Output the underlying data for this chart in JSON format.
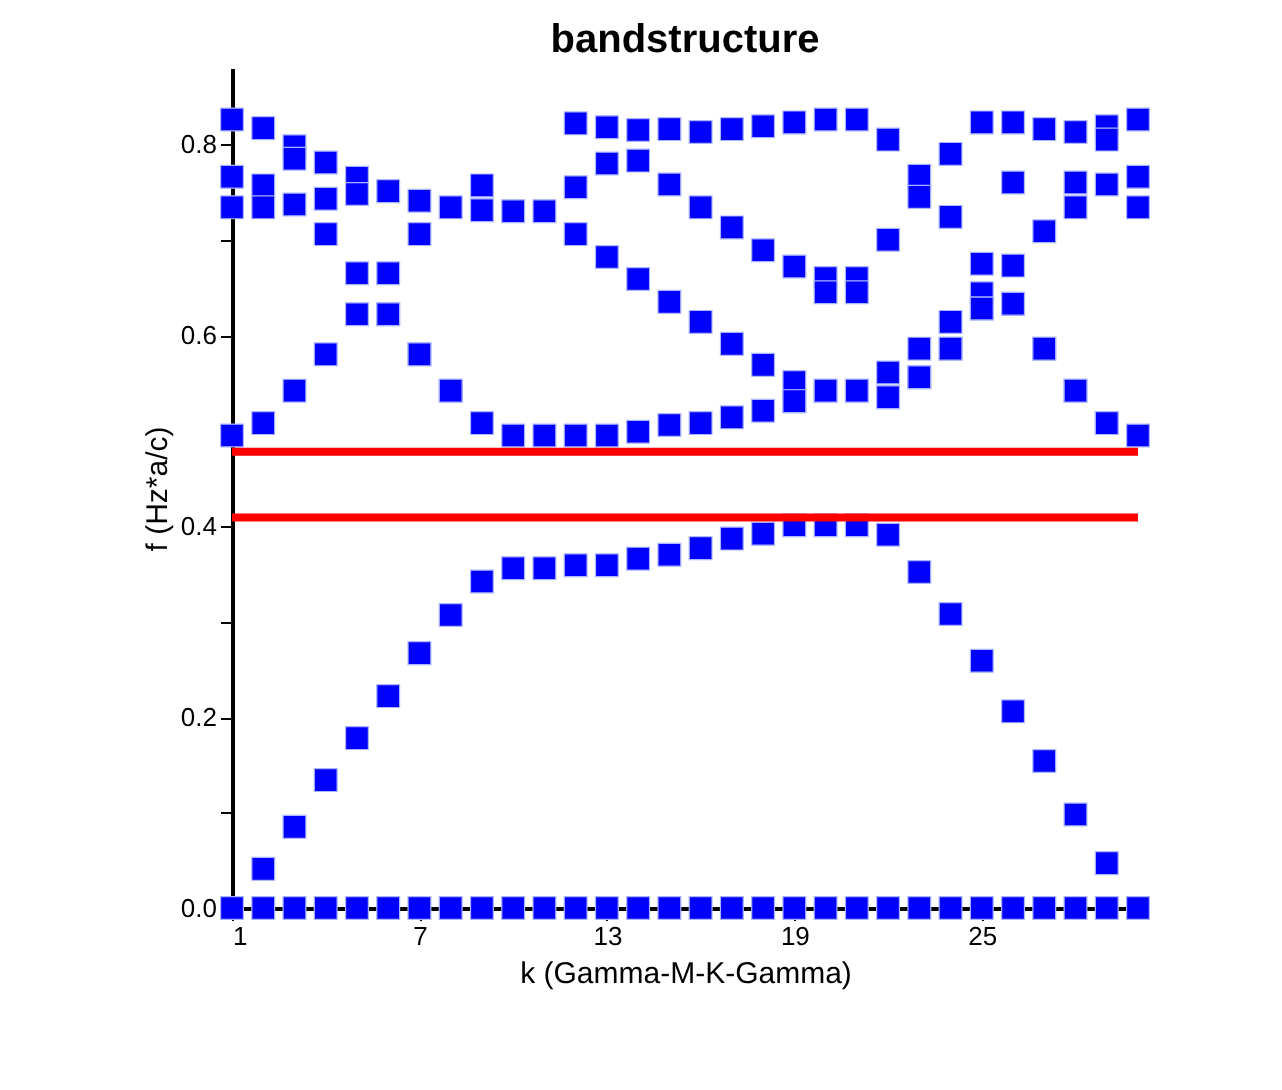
{
  "chart_data": {
    "type": "scatter",
    "title": "bandstructure",
    "xlabel": "k (Gamma-M-K-Gamma)",
    "ylabel": "f (Hz*a/c)",
    "xlim": [
      1,
      30
    ],
    "ylim": [
      0,
      0.88
    ],
    "xticks": [
      1,
      7,
      13,
      19,
      25
    ],
    "yticks": [
      {
        "value": 0,
        "label": "0.0"
      },
      {
        "value": 0.1,
        "label": null
      },
      {
        "value": 0.2,
        "label": "0.2"
      },
      {
        "value": 0.3,
        "label": null
      },
      {
        "value": 0.4,
        "label": "0.4"
      },
      {
        "value": 0.5,
        "label": null
      },
      {
        "value": 0.6,
        "label": "0.6"
      },
      {
        "value": 0.7,
        "label": null
      },
      {
        "value": 0.8,
        "label": "0.8"
      }
    ],
    "grid": false,
    "marker": "square",
    "ref_lines": [
      {
        "axis": "y",
        "value": 0.478,
        "color": "#ff0000"
      },
      {
        "axis": "y",
        "value": 0.409,
        "color": "#ff0000"
      }
    ],
    "series": [
      {
        "color": "#0000ff",
        "x": [
          1,
          2,
          3,
          4,
          5,
          6,
          7,
          8,
          9,
          10,
          11,
          12,
          13,
          14,
          15,
          16,
          17,
          18,
          19,
          20,
          21,
          22,
          23,
          24,
          25,
          26,
          27,
          28,
          29,
          30,
          2,
          3,
          4,
          5,
          6,
          7,
          8,
          9,
          10,
          11,
          12,
          13,
          14,
          15,
          16,
          17,
          18,
          19,
          20,
          21,
          22,
          23,
          24,
          25,
          26,
          27,
          28,
          29,
          1,
          1,
          1,
          1,
          2,
          2,
          2,
          2,
          3,
          3,
          3,
          3,
          4,
          4,
          4,
          4,
          5,
          5,
          5,
          5,
          6,
          6,
          6,
          6,
          7,
          7,
          7,
          7,
          8,
          8,
          8,
          9,
          9,
          9,
          10,
          10,
          11,
          11,
          12,
          12,
          12,
          12,
          13,
          13,
          13,
          13,
          14,
          14,
          14,
          14,
          15,
          15,
          15,
          15,
          16,
          16,
          16,
          16,
          17,
          17,
          17,
          17,
          18,
          18,
          18,
          18,
          19,
          19,
          19,
          19,
          19,
          20,
          20,
          20,
          20,
          20,
          21,
          21,
          21,
          21,
          21,
          22,
          22,
          22,
          22,
          22,
          23,
          23,
          23,
          23,
          23,
          24,
          24,
          24,
          24,
          24,
          25,
          25,
          25,
          25,
          25,
          26,
          26,
          26,
          26,
          26,
          27,
          27,
          27,
          27,
          28,
          28,
          28,
          28,
          28,
          29,
          29,
          29,
          29,
          29,
          30,
          30,
          30,
          30
        ],
        "values": [
          0,
          0,
          0,
          0,
          0,
          0,
          0,
          0,
          0,
          0,
          0,
          0,
          0,
          0,
          0,
          0,
          0,
          0,
          0,
          0,
          0,
          0,
          0,
          0,
          0,
          0,
          0,
          0,
          0,
          0,
          0.041,
          0.085,
          0.134,
          0.178,
          0.222,
          0.267,
          0.307,
          0.342,
          0.356,
          0.356,
          0.359,
          0.359,
          0.366,
          0.37,
          0.377,
          0.387,
          0.392,
          0.401,
          0.401,
          0.401,
          0.391,
          0.352,
          0.308,
          0.259,
          0.206,
          0.154,
          0.098,
          0.047,
          0.826,
          0.766,
          0.734,
          0.495,
          0.817,
          0.757,
          0.734,
          0.508,
          0.798,
          0.785,
          0.737,
          0.542,
          0.781,
          0.743,
          0.706,
          0.58,
          0.765,
          0.748,
          0.665,
          0.622,
          0.751,
          0.665,
          0.622,
          0.622,
          0.741,
          0.706,
          0.58,
          0.58,
          0.734,
          0.542,
          0.542,
          0.757,
          0.731,
          0.508,
          0.73,
          0.495,
          0.73,
          0.495,
          0.822,
          0.755,
          0.706,
          0.495,
          0.818,
          0.78,
          0.682,
          0.495,
          0.815,
          0.783,
          0.659,
          0.499,
          0.816,
          0.758,
          0.635,
          0.506,
          0.813,
          0.734,
          0.614,
          0.508,
          0.816,
          0.713,
          0.591,
          0.514,
          0.819,
          0.689,
          0.569,
          0.521,
          0.823,
          0.672,
          0.551,
          0.531,
          0.531,
          0.826,
          0.66,
          0.645,
          0.542,
          0.542,
          0.826,
          0.66,
          0.645,
          0.542,
          0.542,
          0.805,
          0.7,
          0.561,
          0.535,
          0.535,
          0.767,
          0.745,
          0.586,
          0.556,
          0.556,
          0.79,
          0.724,
          0.614,
          0.586,
          0.586,
          0.823,
          0.675,
          0.644,
          0.628,
          0.628,
          0.823,
          0.76,
          0.673,
          0.633,
          0.633,
          0.816,
          0.709,
          0.586,
          0.586,
          0.813,
          0.76,
          0.734,
          0.542,
          0.542,
          0.819,
          0.805,
          0.758,
          0.508,
          0.508,
          0.826,
          0.766,
          0.734,
          0.495
        ]
      }
    ]
  }
}
